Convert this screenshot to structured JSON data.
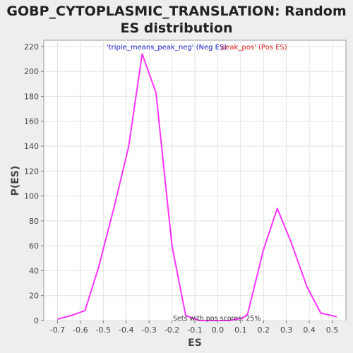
{
  "chart_data": {
    "type": "line",
    "title_lines": [
      "GOBP_CYTOPLASMIC_TRANSLATION: Random",
      "ES distribution"
    ],
    "xlabel": "ES",
    "ylabel": "P(ES)",
    "xlim": [
      -0.76,
      0.56
    ],
    "ylim": [
      0,
      225
    ],
    "x_ticks": [
      -0.7,
      -0.6,
      -0.5,
      -0.4,
      -0.3,
      -0.2,
      -0.1,
      0.0,
      0.1,
      0.2,
      0.3,
      0.4,
      0.5
    ],
    "x_tick_labels": [
      "-0.7",
      "-0.6",
      "-0.5",
      "-0.4",
      "-0.3",
      "-0.2",
      "-0.1",
      "0.0",
      "0.1",
      "0.2",
      "0.3",
      "0.4",
      "0.5"
    ],
    "y_ticks": [
      0,
      20,
      40,
      60,
      80,
      100,
      120,
      140,
      160,
      180,
      200,
      220
    ],
    "y_tick_labels": [
      "0",
      "20",
      "40",
      "60",
      "80",
      "100",
      "120",
      "140",
      "160",
      "180",
      "200",
      "220"
    ],
    "grid": true,
    "legend_position": "top",
    "legend": [
      {
        "text": "'triple_means_peak_neg' (Neg ES)",
        "color": "#2222cc"
      },
      {
        "text": "peak_pos' (Pos ES)",
        "color": "#dd2222"
      }
    ],
    "annotation": "Sets with pos scores: 25%",
    "line_color": "#ff33ff",
    "series": [
      {
        "x": [
          -0.7,
          -0.64,
          -0.58,
          -0.52,
          -0.45,
          -0.39,
          -0.33,
          -0.27,
          -0.2,
          -0.14,
          -0.08,
          -0.01,
          0.05,
          0.11,
          0.13,
          0.2,
          0.26,
          0.32,
          0.39,
          0.45,
          0.52
        ],
        "y": [
          1,
          4,
          8,
          43,
          93,
          139,
          214,
          183,
          60,
          4,
          0,
          0,
          0,
          2,
          5,
          57,
          90,
          63,
          27,
          6,
          3
        ]
      }
    ]
  }
}
